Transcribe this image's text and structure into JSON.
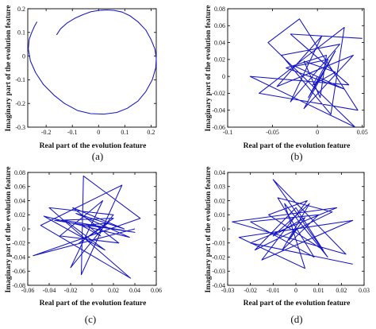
{
  "chart_data": [
    {
      "type": "line",
      "caption": "(a)",
      "xlabel": "Real part of the evolution feature",
      "ylabel": "Imaginary part of the evolution feature",
      "xlim": [
        -0.27,
        0.22
      ],
      "ylim": [
        -0.3,
        0.2
      ],
      "xticks": [
        "-0.2",
        "-0.1",
        "0",
        "0.1",
        "0.2"
      ],
      "xtick_values": [
        -0.2,
        -0.1,
        0,
        0.1,
        0.2
      ],
      "yticks": [
        "0.2",
        "0.1",
        "0",
        "-0.1",
        "-0.2",
        "-0.3"
      ],
      "ytick_values": [
        0.2,
        0.1,
        0,
        -0.1,
        -0.2,
        -0.3
      ],
      "grid": false,
      "x": [
        -0.16,
        -0.145,
        -0.12,
        -0.09,
        -0.06,
        -0.03,
        0.0,
        0.03,
        0.06,
        0.09,
        0.12,
        0.15,
        0.18,
        0.2,
        0.215,
        0.22,
        0.218,
        0.205,
        0.18,
        0.15,
        0.11,
        0.07,
        0.02,
        -0.03,
        -0.08,
        -0.13,
        -0.17,
        -0.21,
        -0.24,
        -0.26,
        -0.268,
        -0.265,
        -0.255,
        -0.245,
        -0.235
      ],
      "y": [
        0.09,
        0.115,
        0.14,
        0.16,
        0.175,
        0.187,
        0.193,
        0.195,
        0.193,
        0.186,
        0.17,
        0.145,
        0.11,
        0.07,
        0.03,
        -0.01,
        -0.05,
        -0.1,
        -0.15,
        -0.19,
        -0.22,
        -0.238,
        -0.245,
        -0.243,
        -0.23,
        -0.2,
        -0.165,
        -0.12,
        -0.07,
        -0.02,
        0.03,
        0.07,
        0.1,
        0.125,
        0.145
      ]
    },
    {
      "type": "line",
      "caption": "(b)",
      "xlabel": "Real part of the evolution feature",
      "ylabel": "Imaginary part of the evolution feature",
      "xlim": [
        -0.1,
        0.052
      ],
      "ylim": [
        -0.06,
        0.08
      ],
      "xticks": [
        "-0.1",
        "-0.05",
        "0",
        "0.05"
      ],
      "xtick_values": [
        -0.1,
        -0.05,
        0,
        0.05
      ],
      "yticks": [
        "0.08",
        "0.06",
        "0.04",
        "0.02",
        "0",
        "-0.02",
        "-0.04",
        "-0.06"
      ],
      "ytick_values": [
        0.08,
        0.06,
        0.04,
        0.02,
        0,
        -0.02,
        -0.04,
        -0.06
      ],
      "grid": false,
      "x": [
        0.05,
        -0.03,
        0.035,
        -0.075,
        0.042,
        -0.055,
        -0.02,
        0.045,
        -0.065,
        0.03,
        0.015,
        -0.04,
        0.025,
        -0.03,
        0.005,
        -0.045,
        0.04,
        -0.015,
        0.02,
        -0.01,
        0.012,
        -0.025,
        0.03,
        -0.035,
        0.01,
        0.003,
        -0.015,
        0.02,
        -0.005,
        0.0
      ],
      "y": [
        0.045,
        0.05,
        -0.01,
        0.0,
        -0.06,
        0.04,
        0.068,
        -0.04,
        -0.02,
        0.058,
        -0.045,
        0.025,
        0.038,
        -0.03,
        0.048,
        -0.012,
        0.025,
        -0.038,
        0.03,
        -0.025,
        0.02,
        0.012,
        -0.015,
        0.01,
        0.025,
        -0.025,
        0.018,
        0.005,
        -0.01,
        0.0
      ]
    },
    {
      "type": "line",
      "caption": "(c)",
      "xlabel": "Real part of the evolution feature",
      "ylabel": "Imaginary part of the evolution feature",
      "xlim": [
        -0.06,
        0.06
      ],
      "ylim": [
        -0.08,
        0.08
      ],
      "xticks": [
        "-0.06",
        "-0.04",
        "-0.02",
        "0",
        "0.02",
        "0.04",
        "0.06"
      ],
      "xtick_values": [
        -0.06,
        -0.04,
        -0.02,
        0,
        0.02,
        0.04,
        0.06
      ],
      "yticks": [
        "0.08",
        "0.06",
        "0.04",
        "0.02",
        "0",
        "-0.02",
        "-0.04",
        "-0.06",
        "-0.08"
      ],
      "ytick_values": [
        0.08,
        0.06,
        0.04,
        0.02,
        0,
        -0.02,
        -0.04,
        -0.06,
        -0.08
      ],
      "grid": false,
      "x": [
        0.04,
        -0.055,
        0.045,
        -0.008,
        -0.01,
        0.028,
        -0.048,
        0.036,
        -0.04,
        0.02,
        -0.02,
        0.01,
        -0.03,
        0.025,
        -0.018,
        0.03,
        -0.015,
        0.035,
        -0.045,
        0.012,
        -0.025,
        0.04,
        -0.035,
        0.02,
        -0.012,
        0.015,
        -0.01,
        0.008,
        -0.005,
        0.0
      ],
      "y": [
        0.0,
        -0.038,
        0.015,
        0.075,
        -0.065,
        0.062,
        0.005,
        -0.07,
        0.03,
        0.02,
        -0.055,
        0.04,
        -0.01,
        -0.02,
        0.03,
        0.0,
        0.022,
        -0.012,
        0.018,
        -0.03,
        0.012,
        -0.005,
        0.012,
        0.015,
        -0.02,
        0.008,
        0.005,
        -0.01,
        0.006,
        0.0
      ]
    },
    {
      "type": "line",
      "caption": "(d)",
      "xlabel": "Real part of the evolution feature",
      "ylabel": "Imaginary part of the evolution feature",
      "xlim": [
        -0.03,
        0.03
      ],
      "ylim": [
        -0.04,
        0.04
      ],
      "xticks": [
        "-0.03",
        "-0.02",
        "-0.01",
        "0",
        "0.01",
        "0.02",
        "0.03"
      ],
      "xtick_values": [
        -0.03,
        -0.02,
        -0.01,
        0,
        0.01,
        0.02,
        0.03
      ],
      "yticks": [
        "0.04",
        "0.03",
        "0.02",
        "0.01",
        "0",
        "-0.01",
        "-0.02",
        "-0.03",
        "-0.04"
      ],
      "ytick_values": [
        0.04,
        0.03,
        0.02,
        0.01,
        0,
        -0.01,
        -0.02,
        -0.03,
        -0.04
      ],
      "grid": false,
      "x": [
        0.025,
        -0.02,
        0.018,
        -0.028,
        0.022,
        -0.01,
        0.014,
        -0.005,
        0.004,
        -0.025,
        0.025,
        -0.015,
        0.005,
        -0.012,
        0.012,
        0.0,
        -0.018,
        0.016,
        -0.008,
        0.008,
        -0.02,
        0.01,
        -0.006,
        0.006,
        -0.01,
        0.004,
        -0.003,
        0.0
      ],
      "y": [
        -0.025,
        -0.01,
        0.015,
        0.005,
        -0.018,
        0.035,
        -0.02,
        0.018,
        -0.028,
        -0.006,
        0.006,
        -0.022,
        0.02,
        0.01,
        -0.015,
        0.015,
        -0.015,
        0.012,
        0.022,
        -0.02,
        0.005,
        0.01,
        -0.015,
        0.018,
        -0.005,
        0.008,
        -0.008,
        0.0
      ]
    }
  ]
}
